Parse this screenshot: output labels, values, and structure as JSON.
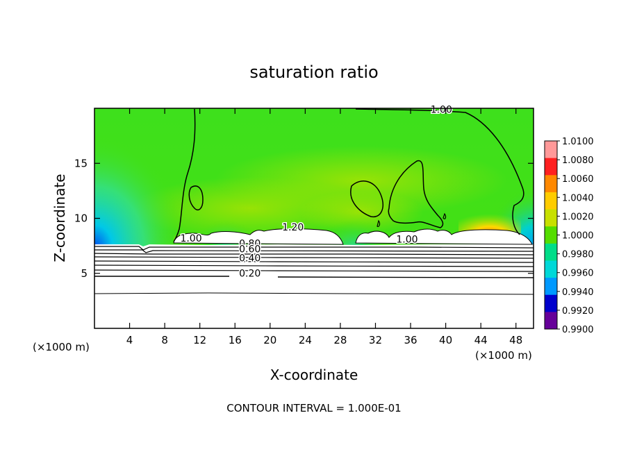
{
  "chart_data": {
    "type": "heatmap",
    "title": "saturation ratio",
    "xlabel": "X-coordinate",
    "ylabel": "Z-coordinate",
    "x_unit_left": "(×1000 m)",
    "x_unit_right": "(×1000 m)",
    "footer": "CONTOUR INTERVAL = 1.000E-01",
    "xlim": [
      0,
      50
    ],
    "ylim": [
      0,
      20
    ],
    "x_ticks": [
      4,
      8,
      12,
      16,
      20,
      24,
      28,
      32,
      36,
      40,
      44,
      48
    ],
    "y_ticks": [
      5,
      10,
      15
    ],
    "colorbar": {
      "min": 0.99,
      "max": 1.01,
      "labels": [
        "1.0100",
        "1.0080",
        "1.0060",
        "1.0040",
        "1.0020",
        "1.0000",
        "0.9980",
        "0.9960",
        "0.9940",
        "0.9920",
        "0.9900"
      ],
      "colors": [
        "#ff9999",
        "#ff2020",
        "#ff8800",
        "#ffcc00",
        "#c8e000",
        "#55dd00",
        "#00dd88",
        "#00d8d8",
        "#0099ff",
        "#0000cc",
        "#660099"
      ]
    },
    "contour_labels": [
      {
        "text": "1.00",
        "x": 39.5,
        "z": 19.6
      },
      {
        "text": "1.20",
        "x": 22.6,
        "z": 8.9
      },
      {
        "text": "1.00",
        "x": 11.0,
        "z": 7.9
      },
      {
        "text": "1.00",
        "x": 35.6,
        "z": 7.8
      },
      {
        "text": "0.80",
        "x": 17.7,
        "z": 7.4
      },
      {
        "text": "0.60",
        "x": 17.7,
        "z": 6.9
      },
      {
        "text": "0.40",
        "x": 17.7,
        "z": 6.1
      },
      {
        "text": "0.20",
        "x": 17.7,
        "z": 4.7
      }
    ],
    "grid": false,
    "legend": "right"
  }
}
